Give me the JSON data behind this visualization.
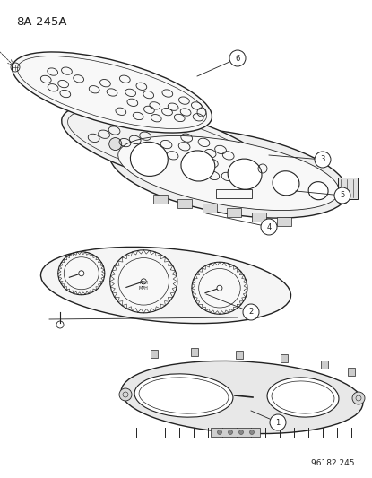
{
  "title_code": "8A-245A",
  "doc_number": "96182 245",
  "background_color": "#ffffff",
  "line_color": "#222222",
  "fig_width": 4.15,
  "fig_height": 5.33,
  "dpi": 100
}
